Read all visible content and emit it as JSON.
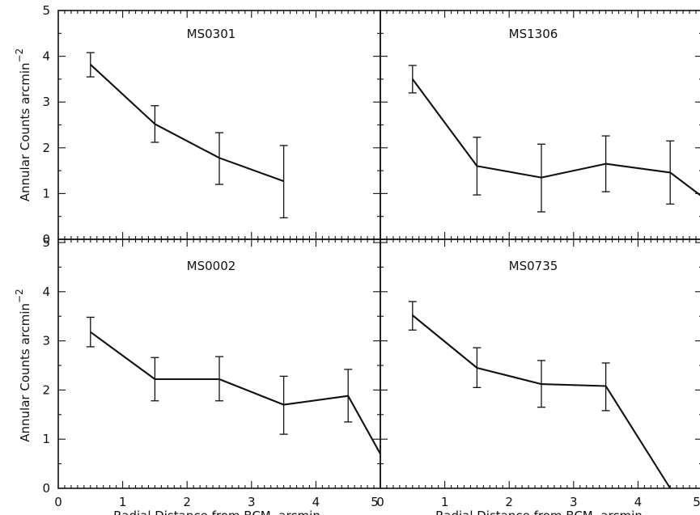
{
  "chart_data": [
    {
      "type": "line",
      "title": "MS0301",
      "xlabel": "",
      "ylabel": "Annular Counts arcmin",
      "ylabel_sup": "−2",
      "xlim": [
        0,
        5
      ],
      "ylim": [
        0,
        5
      ],
      "x_ticks": [],
      "y_ticks": [
        "0",
        "1",
        "2",
        "3",
        "4",
        "5"
      ],
      "grid": false,
      "x": [
        0.5,
        1.5,
        2.5,
        3.5
      ],
      "y": [
        3.82,
        2.52,
        1.78,
        1.27
      ],
      "err_low": [
        3.55,
        2.12,
        1.2,
        0.47
      ],
      "err_high": [
        4.08,
        2.92,
        2.33,
        2.05
      ]
    },
    {
      "type": "line",
      "title": "MS1306",
      "xlabel": "",
      "ylabel": "",
      "xlim": [
        0,
        5
      ],
      "ylim": [
        0,
        5
      ],
      "x_ticks": [],
      "y_ticks": [],
      "grid": false,
      "x": [
        0.5,
        1.5,
        2.5,
        3.5,
        4.5,
        5.0
      ],
      "y": [
        3.5,
        1.6,
        1.35,
        1.65,
        1.46,
        0.93
      ],
      "err_low": [
        3.2,
        0.97,
        0.6,
        1.04,
        0.77,
        null
      ],
      "err_high": [
        3.8,
        2.23,
        2.08,
        2.26,
        2.15,
        null
      ]
    },
    {
      "type": "line",
      "title": "MS0002",
      "xlabel": "Radial Distance from BCM, arcmin",
      "ylabel": "Annular Counts arcmin",
      "ylabel_sup": "−2",
      "xlim": [
        0,
        5
      ],
      "ylim": [
        0,
        5
      ],
      "x_ticks": [
        "0",
        "1",
        "2",
        "3",
        "4",
        "5"
      ],
      "y_ticks": [
        "0",
        "1",
        "2",
        "3",
        "4",
        "5"
      ],
      "grid": false,
      "x": [
        0.5,
        1.5,
        2.5,
        3.5,
        4.5,
        5.0
      ],
      "y": [
        3.18,
        2.22,
        2.22,
        1.7,
        1.88,
        0.7
      ],
      "err_low": [
        2.88,
        1.78,
        1.78,
        1.1,
        1.35,
        null
      ],
      "err_high": [
        3.48,
        2.66,
        2.68,
        2.28,
        2.42,
        null
      ]
    },
    {
      "type": "line",
      "title": "MS0735",
      "xlabel": "Radial Distance from BCM, arcmin",
      "ylabel": "",
      "xlim": [
        0,
        5
      ],
      "ylim": [
        0,
        5
      ],
      "x_ticks": [
        "0",
        "1",
        "2",
        "3",
        "4",
        "5"
      ],
      "y_ticks": [],
      "grid": false,
      "x": [
        0.5,
        1.5,
        2.5,
        3.5,
        4.5
      ],
      "y": [
        3.52,
        2.45,
        2.12,
        2.08,
        0.0
      ],
      "err_low": [
        3.22,
        2.05,
        1.65,
        1.58,
        null
      ],
      "err_high": [
        3.8,
        2.86,
        2.6,
        2.55,
        null
      ]
    }
  ]
}
